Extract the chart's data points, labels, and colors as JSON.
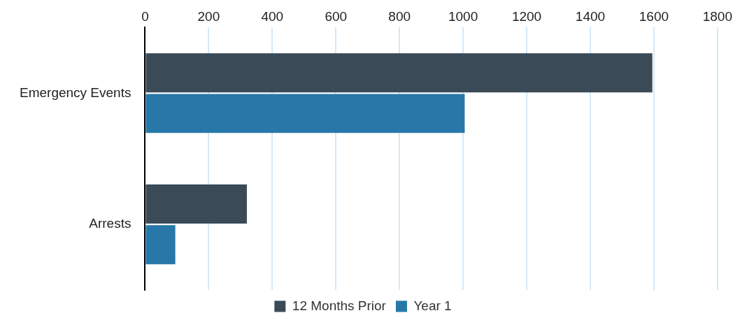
{
  "chart_data": {
    "type": "bar",
    "orientation": "horizontal",
    "categories": [
      "Emergency Events",
      "Arrests"
    ],
    "series": [
      {
        "name": "12 Months Prior",
        "color": "#3b4a57",
        "values": [
          1595,
          320
        ]
      },
      {
        "name": "Year 1",
        "color": "#2778a8",
        "values": [
          1005,
          95
        ]
      }
    ],
    "xlim": [
      0,
      1800
    ],
    "xticks": [
      0,
      200,
      400,
      600,
      800,
      1000,
      1200,
      1400,
      1600,
      1800
    ],
    "grid": "x",
    "legend": "bottom"
  }
}
